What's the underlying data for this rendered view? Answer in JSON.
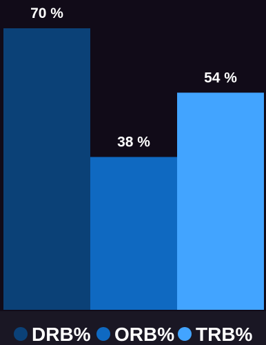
{
  "chart_data": {
    "type": "bar",
    "categories": [
      "DRB%",
      "ORB%",
      "TRB%"
    ],
    "values": [
      70,
      38,
      54
    ],
    "value_suffix": " %",
    "ylim": [
      0,
      70
    ],
    "grid": false,
    "legend_placement": "bottom",
    "colors": [
      "#0b4177",
      "#0f69c1",
      "#42a4ff"
    ],
    "background": "#110b18",
    "legend_strip_color": "#1a1724"
  }
}
